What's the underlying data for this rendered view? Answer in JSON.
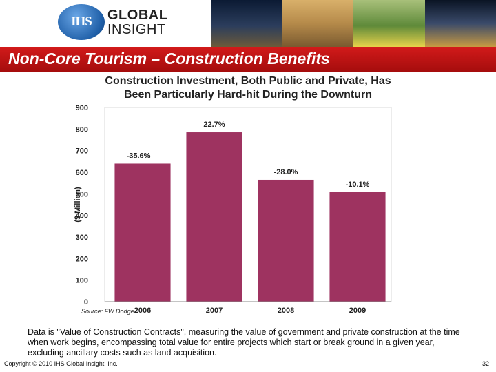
{
  "header": {
    "logo_mark": "IHS",
    "logo_line1": "GLOBAL",
    "logo_line2": "INSIGHT"
  },
  "banner": {
    "title": "Non-Core Tourism – Construction Benefits"
  },
  "colors": {
    "banner": "#b81212",
    "bar": "#9e3360",
    "grid": "#d9d9d9"
  },
  "chart_data": {
    "type": "bar",
    "title_line1": "Construction Investment, Both Public and Private, Has",
    "title_line2": "Been Particularly Hard-hit During the Downturn",
    "categories": [
      "2006",
      "2007",
      "2008",
      "2009"
    ],
    "values": [
      640,
      785,
      565,
      508
    ],
    "data_labels": [
      "-35.6%",
      "22.7%",
      "-28.0%",
      "-10.1%"
    ],
    "ylabel": "($ Million)",
    "xlabel": "",
    "ylim": [
      0,
      900
    ],
    "yticks": [
      0,
      100,
      200,
      300,
      400,
      500,
      600,
      700,
      800,
      900
    ],
    "grid": false
  },
  "source": "Source:  FW Dodge",
  "note": "Data is \"Value of Construction Contracts\", measuring the value of government and private construction at the time when work begins, encompassing total value for entire projects which start or break ground in a given year, excluding ancillary costs such as land acquisition.",
  "footer": {
    "copyright": "Copyright © 2010 IHS Global Insight, Inc.",
    "page_number": "32"
  }
}
